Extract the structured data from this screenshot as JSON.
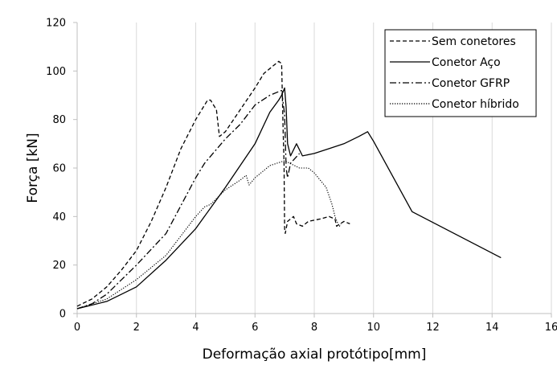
{
  "chart_data": {
    "type": "line",
    "title": "",
    "xlabel": "Deformação axial protótipo[mm]",
    "ylabel": "Força [kN]",
    "xlim": [
      0,
      16
    ],
    "ylim": [
      0,
      120
    ],
    "xticks": [
      0,
      2,
      4,
      6,
      8,
      10,
      12,
      14,
      16
    ],
    "yticks": [
      0,
      20,
      40,
      60,
      80,
      100,
      120
    ],
    "xtick_labels": [
      "0",
      "2",
      "4",
      "6",
      "8",
      "10",
      "12",
      "14",
      "16"
    ],
    "ytick_labels": [
      "0",
      "20",
      "40",
      "60",
      "80",
      "100",
      "120"
    ],
    "grid": "vertical",
    "legend_position": "top-right",
    "series": [
      {
        "name": "Sem conetores",
        "style": "dashed",
        "color": "#000000",
        "points": [
          [
            0,
            3
          ],
          [
            0.5,
            6
          ],
          [
            1,
            11
          ],
          [
            1.5,
            18
          ],
          [
            2,
            26
          ],
          [
            2.5,
            38
          ],
          [
            3,
            52
          ],
          [
            3.5,
            68
          ],
          [
            4,
            80
          ],
          [
            4.4,
            88
          ],
          [
            4.5,
            88
          ],
          [
            4.7,
            84
          ],
          [
            4.8,
            73
          ],
          [
            5,
            75
          ],
          [
            5.5,
            84
          ],
          [
            6,
            93
          ],
          [
            6.3,
            99
          ],
          [
            6.6,
            102
          ],
          [
            6.8,
            104
          ],
          [
            6.9,
            103
          ],
          [
            6.95,
            75
          ],
          [
            6.98,
            62
          ],
          [
            7.0,
            35
          ],
          [
            7.02,
            33
          ],
          [
            7.1,
            38
          ],
          [
            7.3,
            40
          ],
          [
            7.4,
            37
          ],
          [
            7.6,
            36
          ],
          [
            7.8,
            38
          ],
          [
            8.2,
            39
          ],
          [
            8.5,
            40
          ],
          [
            8.7,
            39
          ],
          [
            8.75,
            36
          ],
          [
            9,
            38
          ],
          [
            9.2,
            37
          ]
        ]
      },
      {
        "name": "Conetor Aço",
        "style": "solid",
        "color": "#000000",
        "points": [
          [
            0,
            2
          ],
          [
            1,
            5
          ],
          [
            1.5,
            8
          ],
          [
            2,
            11
          ],
          [
            3,
            22
          ],
          [
            4,
            35
          ],
          [
            5,
            52
          ],
          [
            6,
            70
          ],
          [
            6.5,
            83
          ],
          [
            6.8,
            88
          ],
          [
            6.9,
            90
          ],
          [
            7.0,
            93
          ],
          [
            7.05,
            85
          ],
          [
            7.1,
            70
          ],
          [
            7.2,
            65
          ],
          [
            7.4,
            70
          ],
          [
            7.6,
            65
          ],
          [
            8,
            66
          ],
          [
            8.5,
            68
          ],
          [
            9,
            70
          ],
          [
            9.5,
            73
          ],
          [
            9.8,
            75
          ],
          [
            10,
            71
          ],
          [
            11.3,
            42
          ],
          [
            14.3,
            23
          ]
        ]
      },
      {
        "name": "Conetor GFRP",
        "style": "dashdot",
        "color": "#000000",
        "points": [
          [
            0,
            2
          ],
          [
            0.5,
            4
          ],
          [
            1,
            8
          ],
          [
            1.5,
            14
          ],
          [
            2,
            20
          ],
          [
            3,
            33
          ],
          [
            4,
            56
          ],
          [
            4.3,
            62
          ],
          [
            5,
            72
          ],
          [
            5.5,
            78
          ],
          [
            6,
            86
          ],
          [
            6.5,
            90
          ],
          [
            6.9,
            92
          ],
          [
            7.0,
            82
          ],
          [
            7.05,
            60
          ],
          [
            7.1,
            56
          ],
          [
            7.2,
            62
          ],
          [
            7.5,
            66
          ]
        ]
      },
      {
        "name": "Conetor híbrido",
        "style": "dotted",
        "color": "#000000",
        "points": [
          [
            0,
            2
          ],
          [
            1,
            6
          ],
          [
            2,
            14
          ],
          [
            3,
            24
          ],
          [
            4,
            40
          ],
          [
            4.3,
            44
          ],
          [
            4.5,
            45
          ],
          [
            5,
            51
          ],
          [
            5.5,
            55
          ],
          [
            5.7,
            57
          ],
          [
            5.8,
            53
          ],
          [
            6,
            56
          ],
          [
            6.5,
            61
          ],
          [
            7,
            63
          ],
          [
            7.5,
            60
          ],
          [
            7.8,
            60
          ],
          [
            8,
            58
          ],
          [
            8.2,
            55
          ],
          [
            8.4,
            52
          ],
          [
            8.6,
            45
          ],
          [
            8.7,
            40
          ],
          [
            8.8,
            37
          ],
          [
            8.85,
            36
          ],
          [
            8.9,
            37
          ]
        ]
      }
    ]
  }
}
